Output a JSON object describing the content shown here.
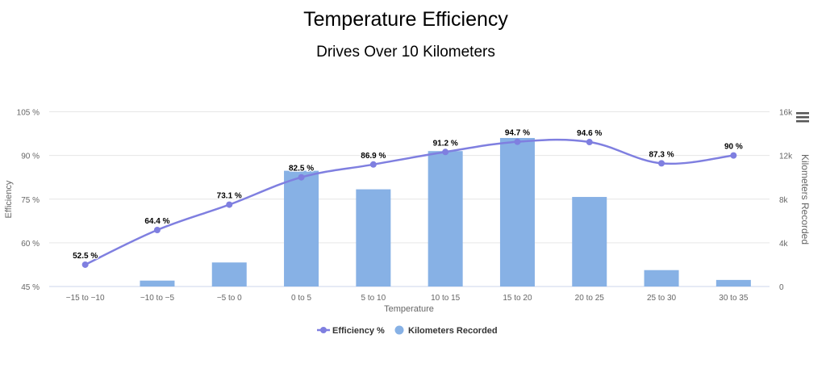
{
  "chart_data": {
    "type": "bar+line",
    "title": "Temperature Efficiency",
    "subtitle": "Drives Over 10 Kilometers",
    "xlabel": "Temperature",
    "ylabel_left": "Efficiency",
    "ylabel_right": "Kilometers Recorded",
    "categories": [
      "−15 to −10",
      "−10 to −5",
      "−5 to 0",
      "0 to 5",
      "5 to 10",
      "10 to 15",
      "15 to 20",
      "20 to 25",
      "25 to 30",
      "30 to 35"
    ],
    "left_axis": {
      "min": 45,
      "max": 105,
      "ticks": [
        45,
        60,
        75,
        90,
        105
      ],
      "tick_labels": [
        "45 %",
        "60 %",
        "75 %",
        "90 %",
        "105 %"
      ]
    },
    "right_axis": {
      "min": 0,
      "max": 16000,
      "ticks": [
        0,
        4000,
        8000,
        12000,
        16000
      ],
      "tick_labels": [
        "0",
        "4k",
        "8k",
        "12k",
        "16k"
      ]
    },
    "grid": true,
    "legend_position": "bottom-center",
    "series": [
      {
        "name": "Efficiency %",
        "type": "spline",
        "axis": "left",
        "color": "#7f7fe0",
        "values": [
          52.5,
          64.4,
          73.1,
          82.5,
          86.9,
          91.2,
          94.7,
          94.6,
          87.3,
          90
        ],
        "data_labels": [
          "52.5 %",
          "64.4 %",
          "73.1 %",
          "82.5 %",
          "86.9 %",
          "91.2 %",
          "94.7 %",
          "94.6 %",
          "87.3 %",
          "90 %"
        ]
      },
      {
        "name": "Kilometers Recorded",
        "type": "column",
        "axis": "right",
        "color": "#87b1e5",
        "values": [
          0,
          540,
          2200,
          10600,
          8900,
          12400,
          13600,
          8200,
          1500,
          600
        ]
      }
    ]
  },
  "menu": {
    "icon": "hamburger-menu-icon"
  }
}
